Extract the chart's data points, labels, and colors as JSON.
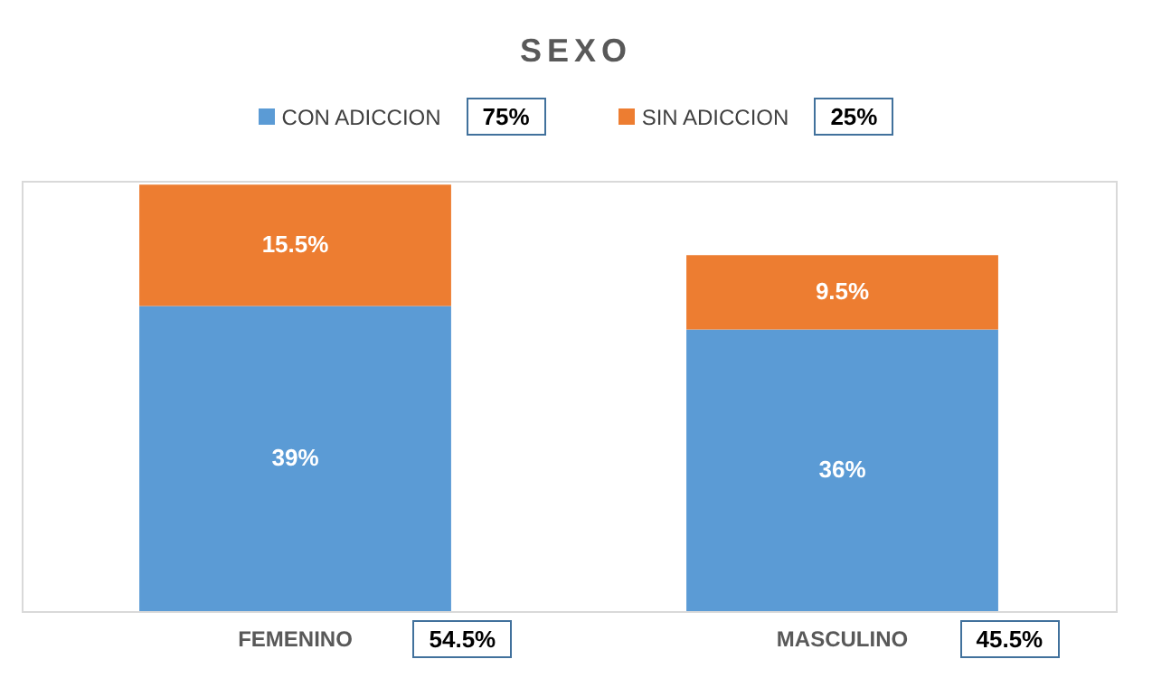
{
  "chart_data": {
    "type": "bar",
    "title": "SEXO",
    "stacked": true,
    "categories": [
      "FEMENINO",
      "MASCULINO"
    ],
    "series": [
      {
        "name": "CON ADICCION",
        "color": "#5b9bd5",
        "values": [
          39,
          36
        ],
        "value_labels": [
          "39%",
          "36%"
        ]
      },
      {
        "name": "SIN ADICCION",
        "color": "#ed7d31",
        "values": [
          15.5,
          9.5
        ],
        "value_labels": [
          "15.5%",
          "9.5%"
        ]
      }
    ],
    "annotations": [
      "75%",
      "25%"
    ],
    "totals": [
      "54.5%",
      "45.5%"
    ],
    "legend": "top"
  }
}
